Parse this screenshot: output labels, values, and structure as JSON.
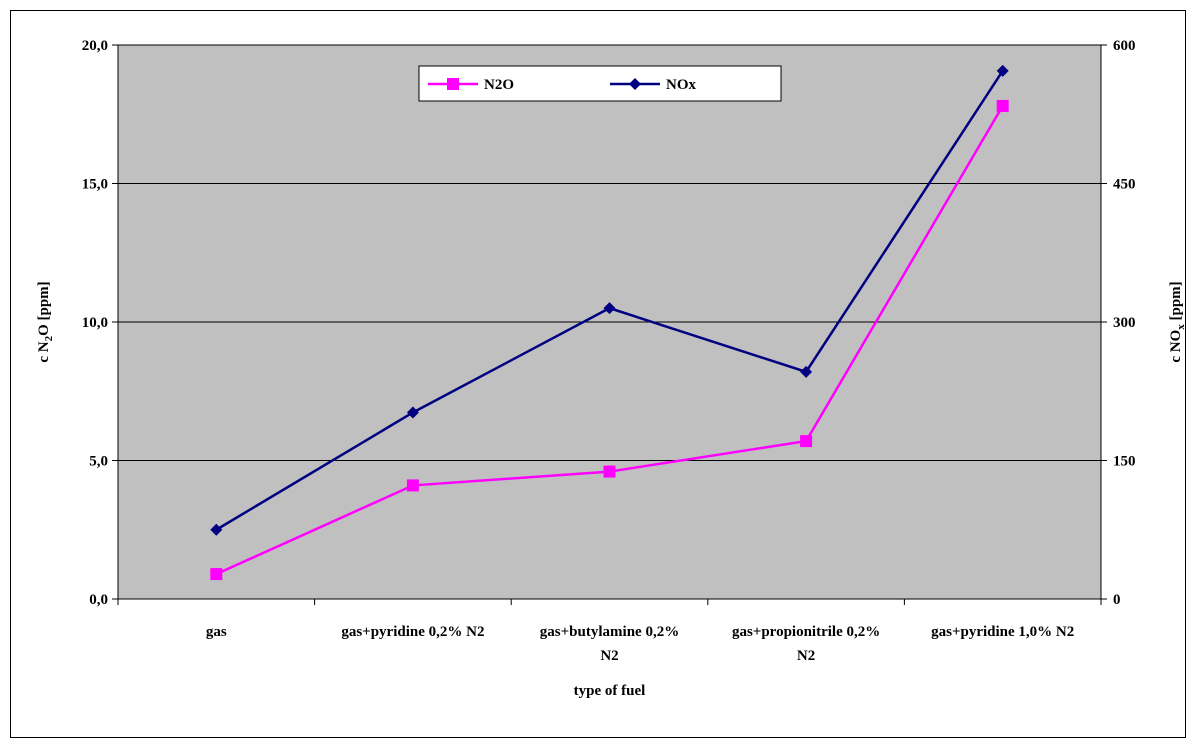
{
  "chart_data": {
    "type": "line",
    "categories": [
      [
        "gas"
      ],
      [
        "gas+pyridine 0,2% N2"
      ],
      [
        "gas+butylamine 0,2%",
        "N2"
      ],
      [
        "gas+propionitrile 0,2%",
        "N2"
      ],
      [
        "gas+pyridine 1,0% N2"
      ]
    ],
    "series": [
      {
        "name": "N2O",
        "axis": "left",
        "values": [
          0.9,
          4.1,
          4.6,
          5.7,
          17.8
        ],
        "color": "#ff00ff",
        "marker": "square"
      },
      {
        "name": "NOx",
        "axis": "right",
        "values": [
          75,
          202,
          315,
          246,
          572
        ],
        "color": "#000080",
        "marker": "diamond"
      }
    ],
    "xlabel": "type of fuel",
    "ylabel_left": {
      "prefix": "c N",
      "sub": "2",
      "suffix": "O [ppm]"
    },
    "ylabel_right": {
      "prefix": "c NO",
      "sub": "x",
      "suffix": " [ppm]"
    },
    "ylim_left": [
      0,
      20
    ],
    "ylim_right": [
      0,
      600
    ],
    "yticks_left": [
      "0,0",
      "5,0",
      "10,0",
      "15,0",
      "20,0"
    ],
    "yticks_right": [
      "0",
      "150",
      "300",
      "450",
      "600"
    ],
    "grid": true,
    "plot_background": "#c0c0c0",
    "legend_position": "top-center"
  }
}
